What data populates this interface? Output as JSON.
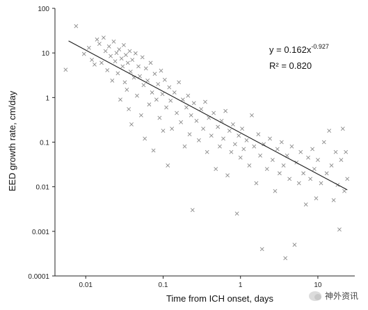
{
  "chart_data": {
    "type": "scatter",
    "title": "",
    "xlabel": "Time from ICH onset, days",
    "ylabel": "EED growth rate, cm/day",
    "xscale": "log",
    "yscale": "log",
    "xlim": [
      0.004,
      30
    ],
    "ylim": [
      0.0001,
      100
    ],
    "x_ticks": [
      0.01,
      0.1,
      1,
      10
    ],
    "x_tick_labels": [
      "0.01",
      "0.1",
      "1",
      "10"
    ],
    "y_ticks": [
      100,
      10,
      1,
      0.1,
      0.01,
      0.001,
      0.0001
    ],
    "y_tick_labels": [
      "100",
      "10",
      "1",
      "0.1",
      "0.01",
      "0.001",
      "0.0001"
    ],
    "grid": false,
    "legend": "none",
    "marker": "x",
    "marker_color": "#8a8a8a",
    "fit": {
      "type": "power",
      "a": 0.162,
      "b": -0.927,
      "x_range": [
        0.006,
        24
      ],
      "line_color": "#1a1a1a"
    },
    "annotation": {
      "equation_base": "y = 0.162x",
      "equation_exponent": "-0.927",
      "r_squared": "R² = 0.820"
    },
    "points": [
      [
        0.0075,
        40
      ],
      [
        0.0055,
        4.2
      ],
      [
        0.0095,
        9.5
      ],
      [
        0.012,
        7
      ],
      [
        0.011,
        13
      ],
      [
        0.013,
        5.5
      ],
      [
        0.014,
        20
      ],
      [
        0.015,
        16
      ],
      [
        0.016,
        6
      ],
      [
        0.017,
        22
      ],
      [
        0.018,
        11
      ],
      [
        0.019,
        4.1
      ],
      [
        0.02,
        14
      ],
      [
        0.021,
        8.5
      ],
      [
        0.022,
        2.4
      ],
      [
        0.023,
        18
      ],
      [
        0.024,
        6.5
      ],
      [
        0.025,
        10
      ],
      [
        0.026,
        3.5
      ],
      [
        0.027,
        12
      ],
      [
        0.028,
        0.9
      ],
      [
        0.029,
        7.5
      ],
      [
        0.03,
        5
      ],
      [
        0.031,
        15
      ],
      [
        0.032,
        2.2
      ],
      [
        0.033,
        9
      ],
      [
        0.034,
        1.5
      ],
      [
        0.035,
        6
      ],
      [
        0.036,
        0.55
      ],
      [
        0.037,
        11
      ],
      [
        0.038,
        3.8
      ],
      [
        0.039,
        0.25
      ],
      [
        0.04,
        7
      ],
      [
        0.042,
        2.8
      ],
      [
        0.044,
        9.8
      ],
      [
        0.046,
        1.1
      ],
      [
        0.048,
        5
      ],
      [
        0.05,
        3
      ],
      [
        0.052,
        0.4
      ],
      [
        0.054,
        8
      ],
      [
        0.056,
        1.9
      ],
      [
        0.058,
        0.12
      ],
      [
        0.06,
        4.5
      ],
      [
        0.063,
        2.4
      ],
      [
        0.066,
        0.7
      ],
      [
        0.069,
        6
      ],
      [
        0.072,
        1.3
      ],
      [
        0.075,
        0.065
      ],
      [
        0.078,
        3.4
      ],
      [
        0.082,
        0.9
      ],
      [
        0.086,
        2
      ],
      [
        0.09,
        0.35
      ],
      [
        0.094,
        4
      ],
      [
        0.098,
        1.2
      ],
      [
        0.1,
        0.18
      ],
      [
        0.105,
        2.5
      ],
      [
        0.11,
        0.6
      ],
      [
        0.115,
        0.03
      ],
      [
        0.12,
        1.7
      ],
      [
        0.125,
        0.85
      ],
      [
        0.13,
        0.2
      ],
      [
        0.14,
        1.3
      ],
      [
        0.15,
        0.45
      ],
      [
        0.16,
        2.2
      ],
      [
        0.17,
        0.28
      ],
      [
        0.18,
        0.9
      ],
      [
        0.19,
        0.08
      ],
      [
        0.2,
        0.6
      ],
      [
        0.21,
        1.1
      ],
      [
        0.22,
        0.15
      ],
      [
        0.23,
        0.4
      ],
      [
        0.24,
        0.003
      ],
      [
        0.25,
        0.75
      ],
      [
        0.27,
        0.3
      ],
      [
        0.29,
        0.11
      ],
      [
        0.31,
        0.55
      ],
      [
        0.33,
        0.2
      ],
      [
        0.35,
        0.8
      ],
      [
        0.37,
        0.06
      ],
      [
        0.39,
        0.35
      ],
      [
        0.42,
        0.14
      ],
      [
        0.45,
        0.45
      ],
      [
        0.48,
        0.025
      ],
      [
        0.51,
        0.22
      ],
      [
        0.54,
        0.08
      ],
      [
        0.57,
        0.3
      ],
      [
        0.6,
        0.12
      ],
      [
        0.64,
        0.5
      ],
      [
        0.68,
        0.018
      ],
      [
        0.72,
        0.18
      ],
      [
        0.76,
        0.06
      ],
      [
        0.8,
        0.25
      ],
      [
        0.85,
        0.09
      ],
      [
        0.9,
        0.0025
      ],
      [
        0.95,
        0.14
      ],
      [
        1,
        0.045
      ],
      [
        1.05,
        0.2
      ],
      [
        1.1,
        0.07
      ],
      [
        1.2,
        0.11
      ],
      [
        1.3,
        0.03
      ],
      [
        1.4,
        0.4
      ],
      [
        1.5,
        0.08
      ],
      [
        1.6,
        0.012
      ],
      [
        1.7,
        0.15
      ],
      [
        1.8,
        0.05
      ],
      [
        1.9,
        0.0004
      ],
      [
        2,
        0.09
      ],
      [
        2.2,
        0.025
      ],
      [
        2.4,
        0.12
      ],
      [
        2.6,
        0.04
      ],
      [
        2.8,
        0.008
      ],
      [
        3,
        0.07
      ],
      [
        3.2,
        0.02
      ],
      [
        3.4,
        0.1
      ],
      [
        3.6,
        0.03
      ],
      [
        3.8,
        0.00025
      ],
      [
        4,
        0.05
      ],
      [
        4.3,
        0.015
      ],
      [
        4.6,
        0.08
      ],
      [
        5,
        0.0005
      ],
      [
        5.3,
        0.035
      ],
      [
        5.7,
        0.012
      ],
      [
        6,
        0.06
      ],
      [
        6.5,
        0.02
      ],
      [
        7,
        0.004
      ],
      [
        7.5,
        0.045
      ],
      [
        8,
        0.015
      ],
      [
        8.5,
        0.07
      ],
      [
        9,
        0.025
      ],
      [
        9.5,
        0.0055
      ],
      [
        10,
        0.04
      ],
      [
        11,
        0.012
      ],
      [
        12,
        0.1
      ],
      [
        13,
        0.02
      ],
      [
        14,
        0.18
      ],
      [
        15,
        0.03
      ],
      [
        16,
        0.005
      ],
      [
        17,
        0.06
      ],
      [
        18,
        0.011
      ],
      [
        19,
        0.0011
      ],
      [
        20,
        0.04
      ],
      [
        21,
        0.2
      ],
      [
        22,
        0.008
      ],
      [
        23,
        0.06
      ],
      [
        24,
        0.015
      ]
    ]
  },
  "watermark": {
    "text": "神外资讯"
  }
}
